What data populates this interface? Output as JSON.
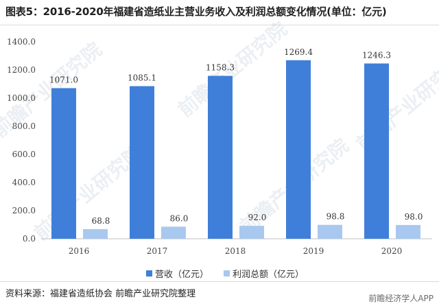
{
  "title": "图表5：2016-2020年福建省造纸业主营业务收入及利润总额变化情况(单位：亿元)",
  "chart_data": {
    "type": "bar",
    "categories": [
      "2016",
      "2017",
      "2018",
      "2019",
      "2020"
    ],
    "series": [
      {
        "name": "营收（亿元）",
        "values": [
          1071.0,
          1085.1,
          1158.3,
          1269.4,
          1246.3
        ],
        "color": "#3f7fd9"
      },
      {
        "name": "利润总额（亿元）",
        "values": [
          68.8,
          86.0,
          92.0,
          98.8,
          98.0
        ],
        "color": "#a9c8ef"
      }
    ],
    "ylim": [
      0,
      1400
    ],
    "yticks": [
      "0.0",
      "200.0",
      "400.0",
      "600.0",
      "800.0",
      "1000.0",
      "1200.0",
      "1400.0"
    ],
    "grid": false,
    "legend_position": "bottom"
  },
  "source": "资料来源：福建省造纸协会 前瞻产业研究院整理",
  "watermark": "前瞻产业研究院",
  "brand": "前瞻经济学人APP"
}
